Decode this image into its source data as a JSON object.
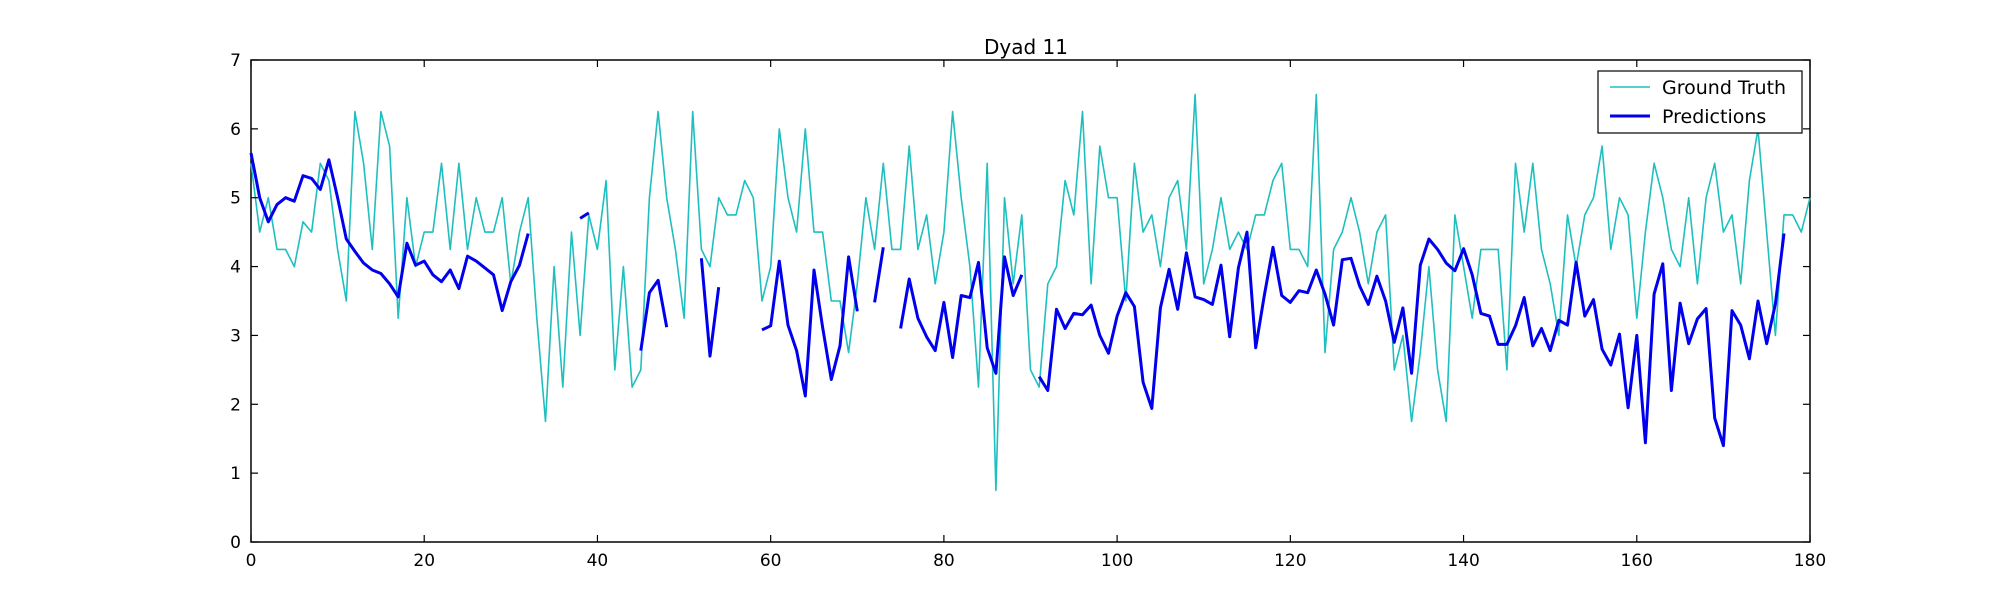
{
  "chart_data": {
    "type": "line",
    "title": "Dyad 11",
    "xlabel": "",
    "ylabel": "",
    "xlim": [
      0,
      180
    ],
    "ylim": [
      0,
      7
    ],
    "xticks": [
      0,
      20,
      40,
      60,
      80,
      100,
      120,
      140,
      160,
      180
    ],
    "yticks": [
      0,
      1,
      2,
      3,
      4,
      5,
      6,
      7
    ],
    "grid": false,
    "legend_position": "top-right",
    "series": [
      {
        "name": "Ground Truth",
        "color": "#1fbfbf",
        "x": [
          0,
          1,
          2,
          3,
          4,
          5,
          6,
          7,
          8,
          9,
          10,
          11,
          12,
          13,
          14,
          15,
          16,
          17,
          18,
          19,
          20,
          21,
          22,
          23,
          24,
          25,
          26,
          27,
          28,
          29,
          30,
          31,
          32,
          33,
          34,
          35,
          36,
          37,
          38,
          39,
          40,
          41,
          42,
          43,
          44,
          45,
          46,
          47,
          48,
          49,
          50,
          51,
          52,
          53,
          54,
          55,
          56,
          57,
          58,
          59,
          60,
          61,
          62,
          63,
          64,
          65,
          66,
          67,
          68,
          69,
          70,
          71,
          72,
          73,
          74,
          75,
          76,
          77,
          78,
          79,
          80,
          81,
          82,
          83,
          84,
          85,
          86,
          87,
          88,
          89,
          90,
          91,
          92,
          93,
          94,
          95,
          96,
          97,
          98,
          99,
          100,
          101,
          102,
          103,
          104,
          105,
          106,
          107,
          108,
          109,
          110,
          111,
          112,
          113,
          114,
          115,
          116,
          117,
          118,
          119,
          120,
          121,
          122,
          123,
          124,
          125,
          126,
          127,
          128,
          129,
          130,
          131,
          132,
          133,
          134,
          135,
          136,
          137,
          138,
          139,
          140,
          141,
          142,
          143,
          144,
          145,
          146,
          147,
          148,
          149,
          150,
          151,
          152,
          153,
          154,
          155,
          156,
          157,
          158,
          159,
          160,
          161,
          162,
          163,
          164,
          165,
          166,
          167,
          168,
          169,
          170,
          171,
          172,
          173,
          174,
          175,
          176,
          177,
          178,
          179,
          180
        ],
        "y": [
          5.5,
          4.5,
          5.0,
          4.25,
          4.25,
          4.0,
          4.65,
          4.5,
          5.5,
          5.25,
          4.25,
          3.5,
          6.25,
          5.5,
          4.25,
          6.25,
          5.75,
          3.25,
          5.0,
          4.0,
          4.5,
          4.5,
          5.5,
          4.25,
          5.5,
          4.25,
          5.0,
          4.5,
          4.5,
          5.0,
          3.75,
          4.5,
          5.0,
          3.25,
          1.75,
          4.0,
          2.25,
          4.5,
          3.0,
          4.75,
          4.25,
          5.25,
          2.5,
          4.0,
          2.25,
          2.5,
          5.0,
          6.25,
          5.0,
          4.25,
          3.25,
          6.25,
          4.25,
          4.0,
          5.0,
          4.75,
          4.75,
          5.25,
          5.0,
          3.5,
          4.0,
          6.0,
          5.0,
          4.5,
          6.0,
          4.5,
          4.5,
          3.5,
          3.5,
          2.75,
          3.75,
          5.0,
          4.25,
          5.5,
          4.25,
          4.25,
          5.75,
          4.25,
          4.75,
          3.75,
          4.5,
          6.25,
          5.0,
          4.0,
          2.25,
          5.5,
          0.75,
          5.0,
          3.75,
          4.75,
          2.5,
          2.25,
          3.75,
          4.0,
          5.25,
          4.75,
          6.25,
          3.75,
          5.75,
          5.0,
          5.0,
          3.5,
          5.5,
          4.5,
          4.75,
          4.0,
          5.0,
          5.25,
          4.25,
          6.5,
          3.75,
          4.25,
          5.0,
          4.25,
          4.5,
          4.25,
          4.75,
          4.75,
          5.25,
          5.5,
          4.25,
          4.25,
          4.0,
          6.5,
          2.75,
          4.25,
          4.5,
          5.0,
          4.5,
          3.75,
          4.5,
          4.75,
          2.5,
          3.0,
          1.75,
          2.75,
          4.0,
          2.5,
          1.75,
          4.75,
          4.0,
          3.25,
          4.25,
          4.25,
          4.25,
          2.5,
          5.5,
          4.5,
          5.5,
          4.25,
          3.75,
          3.0,
          4.75,
          4.0,
          4.75,
          5.0,
          5.75,
          4.25,
          5.0,
          4.75,
          3.25,
          4.5,
          5.5,
          5.0,
          4.25,
          4.0,
          5.0,
          3.75,
          5.0,
          5.5,
          4.5,
          4.75,
          3.75,
          5.25,
          6.0,
          4.5,
          3.0,
          4.75,
          4.75,
          4.5,
          5.0
        ]
      },
      {
        "name": "Predictions",
        "color": "#0000ee",
        "segments": [
          {
            "x": [
              0,
              1,
              2,
              3,
              4,
              5,
              6,
              7,
              8,
              9,
              10,
              11,
              12,
              13,
              14,
              15,
              16,
              17,
              18,
              19,
              20,
              21,
              22,
              23,
              24,
              25,
              26,
              27,
              28,
              29,
              30,
              31,
              32
            ],
            "y": [
              5.65,
              5.0,
              4.65,
              4.9,
              5.0,
              4.95,
              5.32,
              5.28,
              5.12,
              5.55,
              5.0,
              4.4,
              4.22,
              4.05,
              3.95,
              3.9,
              3.75,
              3.56,
              4.34,
              4.02,
              4.08,
              3.88,
              3.78,
              3.95,
              3.68,
              4.15,
              4.08,
              3.98,
              3.88,
              3.36,
              3.78,
              4.02,
              4.48
            ]
          },
          {
            "x": [
              38,
              39
            ],
            "y": [
              4.7,
              4.78
            ]
          },
          {
            "x": [
              45,
              46,
              47,
              48
            ],
            "y": [
              2.78,
              3.62,
              3.8,
              3.12
            ]
          },
          {
            "x": [
              52,
              53,
              54
            ],
            "y": [
              4.12,
              2.7,
              3.7
            ]
          },
          {
            "x": [
              59,
              60,
              61,
              62,
              63,
              64,
              65,
              66,
              67,
              68,
              69,
              70
            ],
            "y": [
              3.08,
              3.14,
              4.08,
              3.15,
              2.78,
              2.12,
              3.95,
              3.12,
              2.36,
              2.85,
              4.14,
              3.35
            ]
          },
          {
            "x": [
              72,
              73
            ],
            "y": [
              3.48,
              4.28
            ]
          },
          {
            "x": [
              75,
              76,
              77,
              78,
              79,
              80,
              81,
              82,
              83,
              84,
              85,
              86,
              87,
              88,
              89
            ],
            "y": [
              3.1,
              3.82,
              3.25,
              2.98,
              2.78,
              3.48,
              2.68,
              3.58,
              3.55,
              4.06,
              2.82,
              2.45,
              4.14,
              3.58,
              3.88
            ]
          },
          {
            "x": [
              91,
              92,
              93,
              94,
              95,
              96,
              97,
              98,
              99,
              100,
              101,
              102,
              103,
              104,
              105,
              106,
              107,
              108,
              109,
              110,
              111,
              112,
              113,
              114,
              115,
              116,
              117,
              118,
              119,
              120,
              121,
              122,
              123,
              124,
              125,
              126,
              127,
              128,
              129,
              130,
              131,
              132,
              133,
              134,
              135,
              136,
              137,
              138,
              139,
              140,
              141,
              142,
              143,
              144,
              145,
              146,
              147,
              148,
              149,
              150,
              151,
              152,
              153,
              154,
              155,
              156,
              157,
              158,
              159,
              160,
              161,
              162,
              163,
              164,
              165,
              166,
              167,
              168,
              169,
              170,
              171,
              172,
              173,
              174,
              175,
              176,
              177
            ],
            "y": [
              2.4,
              2.2,
              3.38,
              3.1,
              3.32,
              3.3,
              3.44,
              3.0,
              2.74,
              3.28,
              3.62,
              3.42,
              2.32,
              1.94,
              3.4,
              3.96,
              3.38,
              4.2,
              3.56,
              3.52,
              3.45,
              4.02,
              2.98,
              3.98,
              4.5,
              2.82,
              3.58,
              4.28,
              3.58,
              3.48,
              3.65,
              3.62,
              3.95,
              3.6,
              3.15,
              4.1,
              4.12,
              3.72,
              3.45,
              3.86,
              3.5,
              2.9,
              3.4,
              2.45,
              4.02,
              4.4,
              4.25,
              4.05,
              3.94,
              4.26,
              3.88,
              3.32,
              3.28,
              2.87,
              2.87,
              3.14,
              3.55,
              2.85,
              3.1,
              2.78,
              3.22,
              3.15,
              4.06,
              3.28,
              3.52,
              2.8,
              2.57,
              3.02,
              1.95,
              3.0,
              1.44,
              3.6,
              4.04,
              2.2,
              3.47,
              2.88,
              3.24,
              3.39,
              1.8,
              1.4,
              3.36,
              3.15,
              2.66,
              3.5,
              2.88,
              3.46,
              4.48
            ]
          }
        ]
      }
    ]
  }
}
